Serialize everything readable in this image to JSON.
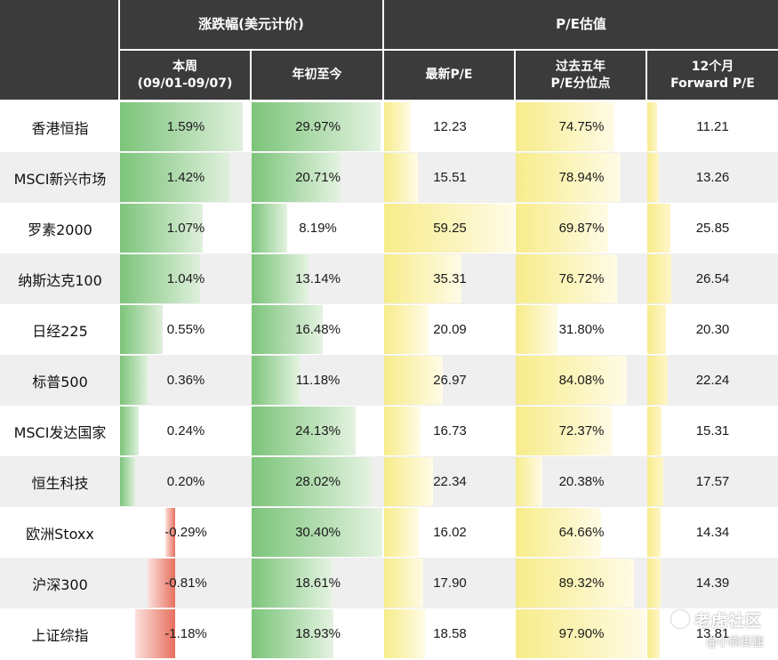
{
  "header": {
    "group_change": "涨跌幅(美元计价)",
    "group_pe": "P/E估值",
    "col_week_line1": "本周",
    "col_week_line2": "(09/01-09/07)",
    "col_ytd": "年初至今",
    "col_pe": "最新P/E",
    "col_pct_line1": "过去五年",
    "col_pct_line2": "P/E分位点",
    "col_fwd_line1": "12个月",
    "col_fwd_line2": "Forward P/E"
  },
  "colors": {
    "header_bg": "#3b3b3b",
    "positive_bar": "#7cc47a",
    "negative_bar": "#e8705f",
    "pe_bar": "#f7ec8a",
    "row_alt": "#efefef"
  },
  "watermark": {
    "brand": "老虎社区",
    "handle": "@小熊街狸"
  },
  "chart_data": {
    "type": "table",
    "columns": [
      "本周(09/01-09/07)",
      "年初至今",
      "最新P/E",
      "过去五年P/E分位点",
      "12个月Forward P/E"
    ],
    "rows": [
      {
        "name": "香港恒指",
        "week": 1.59,
        "ytd": 29.97,
        "pe": 12.23,
        "pct": 74.75,
        "fwd": 11.21,
        "week_label": "1.59%",
        "ytd_label": "29.97%",
        "pe_label": "12.23",
        "pct_label": "74.75%",
        "fwd_label": "11.21"
      },
      {
        "name": "MSCI新兴市场",
        "week": 1.42,
        "ytd": 20.71,
        "pe": 15.51,
        "pct": 78.94,
        "fwd": 13.26,
        "week_label": "1.42%",
        "ytd_label": "20.71%",
        "pe_label": "15.51",
        "pct_label": "78.94%",
        "fwd_label": "13.26"
      },
      {
        "name": "罗素2000",
        "week": 1.07,
        "ytd": 8.19,
        "pe": 59.25,
        "pct": 69.87,
        "fwd": 25.85,
        "week_label": "1.07%",
        "ytd_label": "8.19%",
        "pe_label": "59.25",
        "pct_label": "69.87%",
        "fwd_label": "25.85"
      },
      {
        "name": "纳斯达克100",
        "week": 1.04,
        "ytd": 13.14,
        "pe": 35.31,
        "pct": 76.72,
        "fwd": 26.54,
        "week_label": "1.04%",
        "ytd_label": "13.14%",
        "pe_label": "35.31",
        "pct_label": "76.72%",
        "fwd_label": "26.54"
      },
      {
        "name": "日经225",
        "week": 0.55,
        "ytd": 16.48,
        "pe": 20.09,
        "pct": 31.8,
        "fwd": 20.3,
        "week_label": "0.55%",
        "ytd_label": "16.48%",
        "pe_label": "20.09",
        "pct_label": "31.80%",
        "fwd_label": "20.30"
      },
      {
        "name": "标普500",
        "week": 0.36,
        "ytd": 11.18,
        "pe": 26.97,
        "pct": 84.08,
        "fwd": 22.24,
        "week_label": "0.36%",
        "ytd_label": "11.18%",
        "pe_label": "26.97",
        "pct_label": "84.08%",
        "fwd_label": "22.24"
      },
      {
        "name": "MSCI发达国家",
        "week": 0.24,
        "ytd": 24.13,
        "pe": 16.73,
        "pct": 72.37,
        "fwd": 15.31,
        "week_label": "0.24%",
        "ytd_label": "24.13%",
        "pe_label": "16.73",
        "pct_label": "72.37%",
        "fwd_label": "15.31"
      },
      {
        "name": "恒生科技",
        "week": 0.2,
        "ytd": 28.02,
        "pe": 22.34,
        "pct": 20.38,
        "fwd": 17.57,
        "week_label": "0.20%",
        "ytd_label": "28.02%",
        "pe_label": "22.34",
        "pct_label": "20.38%",
        "fwd_label": "17.57"
      },
      {
        "name": "欧洲Stoxx",
        "week": -0.29,
        "ytd": 30.4,
        "pe": 16.02,
        "pct": 64.66,
        "fwd": 14.34,
        "week_label": "-0.29%",
        "ytd_label": "30.40%",
        "pe_label": "16.02",
        "pct_label": "64.66%",
        "fwd_label": "14.34"
      },
      {
        "name": "沪深300",
        "week": -0.81,
        "ytd": 18.61,
        "pe": 17.9,
        "pct": 89.32,
        "fwd": 14.39,
        "week_label": "-0.81%",
        "ytd_label": "18.61%",
        "pe_label": "17.90",
        "pct_label": "89.32%",
        "fwd_label": "14.39"
      },
      {
        "name": "上证综指",
        "week": -1.18,
        "ytd": 18.93,
        "pe": 18.58,
        "pct": 97.9,
        "fwd": 13.81,
        "week_label": "-1.18%",
        "ytd_label": "18.93%",
        "pe_label": "18.58",
        "pct_label": "97.90%",
        "fwd_label": "13.81"
      }
    ]
  }
}
